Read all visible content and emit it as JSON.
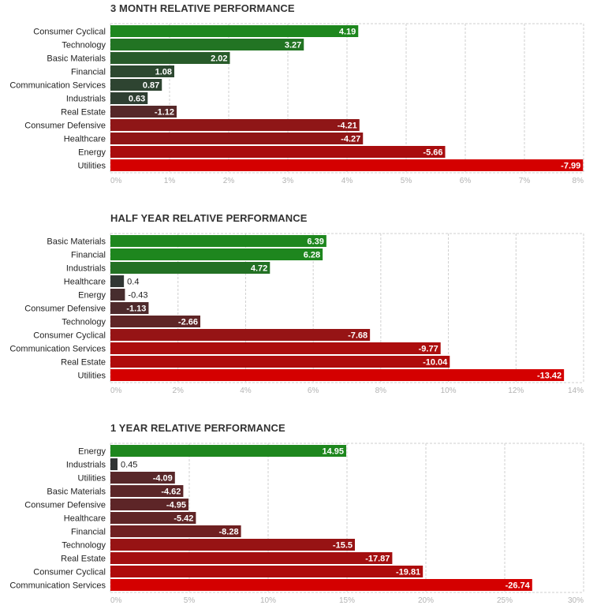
{
  "chart_data": [
    {
      "type": "bar",
      "orientation": "horizontal",
      "title": "3 MONTH RELATIVE PERFORMANCE",
      "categories": [
        "Consumer Cyclical",
        "Technology",
        "Basic Materials",
        "Financial",
        "Communication Services",
        "Industrials",
        "Real Estate",
        "Consumer Defensive",
        "Healthcare",
        "Energy",
        "Utilities"
      ],
      "values": [
        4.19,
        3.27,
        2.02,
        1.08,
        0.87,
        0.63,
        -1.12,
        -4.21,
        -4.27,
        -5.66,
        -7.99
      ],
      "value_labels": [
        "4.19",
        "3.27",
        "2.02",
        "1.08",
        "0.87",
        "0.63",
        "-1.12",
        "-4.21",
        "-4.27",
        "-5.66",
        "-7.99"
      ],
      "ticks": [
        "0%",
        "1%",
        "2%",
        "3%",
        "4%",
        "5%",
        "6%",
        "7%",
        "8%"
      ],
      "xlim": [
        0,
        8
      ],
      "tick_step": 1,
      "bar_length": "absolute value",
      "grid": true
    },
    {
      "type": "bar",
      "orientation": "horizontal",
      "title": "HALF YEAR RELATIVE PERFORMANCE",
      "categories": [
        "Basic Materials",
        "Financial",
        "Industrials",
        "Healthcare",
        "Energy",
        "Consumer Defensive",
        "Technology",
        "Consumer Cyclical",
        "Communication Services",
        "Real Estate",
        "Utilities"
      ],
      "values": [
        6.39,
        6.28,
        4.72,
        0.4,
        -0.43,
        -1.13,
        -2.66,
        -7.68,
        -9.77,
        -10.04,
        -13.42
      ],
      "value_labels": [
        "6.39",
        "6.28",
        "4.72",
        "0.4",
        "-0.43",
        "-1.13",
        "-2.66",
        "-7.68",
        "-9.77",
        "-10.04",
        "-13.42"
      ],
      "ticks": [
        "0%",
        "2%",
        "4%",
        "6%",
        "8%",
        "10%",
        "12%",
        "14%"
      ],
      "xlim": [
        0,
        14
      ],
      "tick_step": 2,
      "bar_length": "absolute value",
      "grid": true
    },
    {
      "type": "bar",
      "orientation": "horizontal",
      "title": "1 YEAR RELATIVE PERFORMANCE",
      "categories": [
        "Energy",
        "Industrials",
        "Utilities",
        "Basic Materials",
        "Consumer Defensive",
        "Healthcare",
        "Financial",
        "Technology",
        "Real Estate",
        "Consumer Cyclical",
        "Communication Services"
      ],
      "values": [
        14.95,
        0.45,
        -4.09,
        -4.62,
        -4.95,
        -5.42,
        -8.28,
        -15.5,
        -17.87,
        -19.81,
        -26.74
      ],
      "value_labels": [
        "14.95",
        "0.45",
        "-4.09",
        "-4.62",
        "-4.95",
        "-5.42",
        "-8.28",
        "-15.5",
        "-17.87",
        "-19.81",
        "-26.74"
      ],
      "ticks": [
        "0%",
        "5%",
        "10%",
        "15%",
        "20%",
        "25%",
        "30%"
      ],
      "xlim": [
        0,
        30
      ],
      "tick_step": 5,
      "bar_length": "absolute value",
      "grid": true
    }
  ]
}
